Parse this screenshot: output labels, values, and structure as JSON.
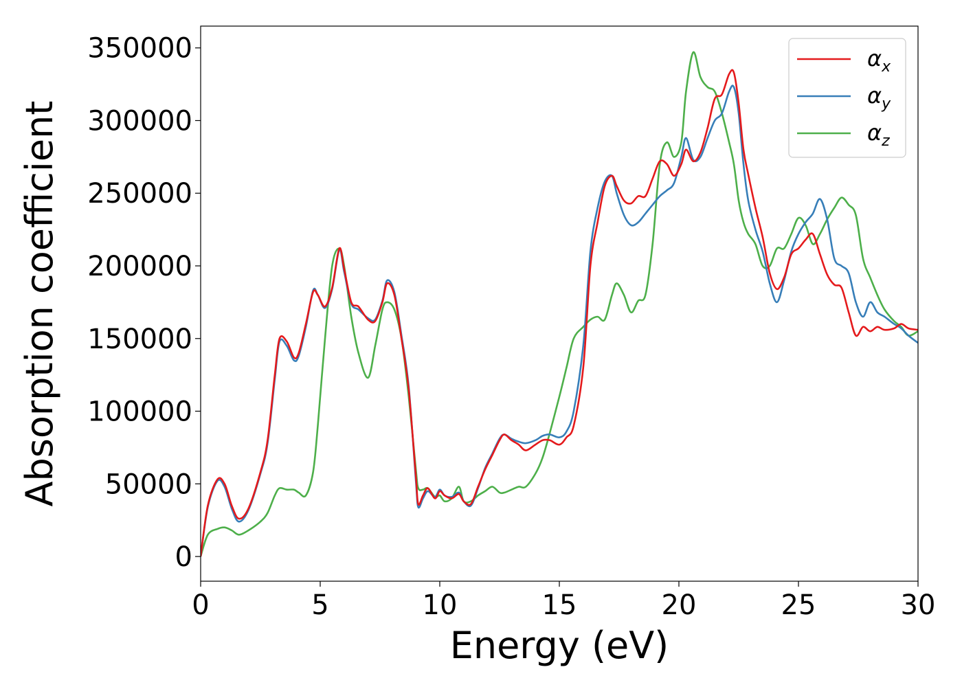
{
  "chart_data": {
    "type": "line",
    "title": "",
    "xlabel": "Energy (eV)",
    "ylabel": "Absorption coefficient",
    "xlim": [
      0,
      30
    ],
    "ylim": [
      -17000,
      365000
    ],
    "x_ticks": [
      "0",
      "5",
      "10",
      "15",
      "20",
      "25",
      "30"
    ],
    "y_ticks": [
      "0",
      "50000",
      "100000",
      "150000",
      "200000",
      "250000",
      "300000",
      "350000"
    ],
    "grid": false,
    "legend_position": "top-right",
    "series": [
      {
        "name": "αx",
        "symbol": "α",
        "subscript": "x",
        "color": "#e41a1c",
        "x": [
          0,
          0.3,
          0.7,
          1.0,
          1.3,
          1.6,
          2.0,
          2.5,
          2.8,
          3.1,
          3.3,
          3.6,
          3.9,
          4.1,
          4.4,
          4.7,
          4.9,
          5.2,
          5.5,
          5.8,
          6.0,
          6.3,
          6.6,
          7.0,
          7.3,
          7.6,
          7.8,
          8.1,
          8.4,
          8.7,
          9.0,
          9.1,
          9.3,
          9.5,
          9.8,
          10.0,
          10.2,
          10.5,
          10.8,
          11.0,
          11.3,
          11.6,
          11.9,
          12.2,
          12.5,
          12.7,
          13.0,
          13.3,
          13.6,
          14.0,
          14.3,
          14.6,
          15.0,
          15.3,
          15.6,
          16.0,
          16.3,
          16.6,
          16.9,
          17.2,
          17.4,
          17.7,
          18.0,
          18.3,
          18.6,
          18.9,
          19.2,
          19.5,
          19.8,
          20.1,
          20.3,
          20.6,
          20.9,
          21.2,
          21.5,
          21.8,
          22.1,
          22.3,
          22.5,
          22.7,
          22.9,
          23.2,
          23.5,
          23.8,
          24.1,
          24.4,
          24.7,
          25.0,
          25.3,
          25.6,
          25.9,
          26.2,
          26.5,
          26.8,
          27.1,
          27.4,
          27.7,
          28.0,
          28.3,
          28.6,
          29.0,
          29.3,
          29.6,
          30.0
        ],
        "y": [
          0,
          35000,
          53000,
          50000,
          35000,
          26000,
          33000,
          58000,
          80000,
          125000,
          150000,
          148000,
          137000,
          140000,
          160000,
          182000,
          180000,
          172000,
          185000,
          212000,
          198000,
          175000,
          172000,
          163000,
          162000,
          175000,
          188000,
          180000,
          150000,
          115000,
          55000,
          36000,
          42000,
          47000,
          40000,
          45000,
          42000,
          40000,
          43000,
          38000,
          36000,
          48000,
          60000,
          70000,
          80000,
          84000,
          80000,
          77000,
          73000,
          77000,
          80000,
          80000,
          77000,
          82000,
          90000,
          130000,
          200000,
          230000,
          255000,
          262000,
          255000,
          245000,
          243000,
          248000,
          248000,
          260000,
          272000,
          270000,
          262000,
          270000,
          280000,
          272000,
          278000,
          295000,
          315000,
          318000,
          332000,
          333000,
          312000,
          280000,
          263000,
          240000,
          220000,
          195000,
          184000,
          192000,
          208000,
          212000,
          218000,
          222000,
          208000,
          194000,
          187000,
          185000,
          168000,
          152000,
          158000,
          155000,
          158000,
          156000,
          157000,
          160000,
          157000,
          156000
        ]
      },
      {
        "name": "αy",
        "symbol": "α",
        "subscript": "y",
        "color": "#377eb8",
        "x": [
          0,
          0.3,
          0.7,
          1.0,
          1.3,
          1.6,
          2.0,
          2.5,
          2.8,
          3.1,
          3.3,
          3.6,
          3.9,
          4.1,
          4.4,
          4.7,
          4.9,
          5.2,
          5.5,
          5.8,
          6.0,
          6.3,
          6.6,
          7.0,
          7.3,
          7.6,
          7.8,
          8.1,
          8.4,
          8.7,
          9.0,
          9.1,
          9.3,
          9.5,
          9.8,
          10.0,
          10.2,
          10.5,
          10.8,
          11.0,
          11.3,
          11.6,
          11.9,
          12.2,
          12.5,
          12.7,
          13.0,
          13.3,
          13.6,
          14.0,
          14.3,
          14.6,
          15.0,
          15.3,
          15.6,
          16.0,
          16.3,
          16.6,
          16.9,
          17.2,
          17.4,
          17.7,
          18.0,
          18.3,
          18.6,
          18.9,
          19.2,
          19.5,
          19.8,
          20.1,
          20.3,
          20.6,
          20.9,
          21.2,
          21.5,
          21.8,
          22.1,
          22.3,
          22.5,
          22.7,
          22.9,
          23.2,
          23.5,
          23.8,
          24.1,
          24.4,
          24.7,
          25.0,
          25.3,
          25.6,
          25.9,
          26.2,
          26.5,
          26.8,
          27.1,
          27.4,
          27.7,
          28.0,
          28.3,
          28.6,
          29.0,
          29.3,
          29.6,
          30.0
        ],
        "y": [
          0,
          34000,
          52000,
          48000,
          33000,
          24000,
          32000,
          57000,
          78000,
          122000,
          148000,
          145000,
          135000,
          138000,
          158000,
          183000,
          180000,
          171000,
          184000,
          211000,
          196000,
          174000,
          170000,
          164000,
          163000,
          176000,
          190000,
          182000,
          152000,
          117000,
          52000,
          34000,
          40000,
          45000,
          41000,
          46000,
          42000,
          41000,
          44000,
          38000,
          35000,
          47000,
          61000,
          71000,
          81000,
          84000,
          81000,
          79000,
          78000,
          80000,
          83000,
          84000,
          82000,
          86000,
          100000,
          145000,
          210000,
          240000,
          258000,
          262000,
          250000,
          235000,
          228000,
          230000,
          236000,
          242000,
          248000,
          252000,
          257000,
          275000,
          288000,
          273000,
          275000,
          288000,
          300000,
          305000,
          320000,
          323000,
          305000,
          270000,
          245000,
          225000,
          210000,
          188000,
          175000,
          190000,
          210000,
          222000,
          230000,
          236000,
          246000,
          232000,
          205000,
          200000,
          195000,
          175000,
          165000,
          175000,
          168000,
          165000,
          160000,
          157000,
          152000,
          147000
        ]
      },
      {
        "name": "αz",
        "symbol": "α",
        "subscript": "z",
        "color": "#4daf4a",
        "x": [
          0,
          0.3,
          0.7,
          1.0,
          1.3,
          1.6,
          2.0,
          2.5,
          2.8,
          3.1,
          3.3,
          3.6,
          3.9,
          4.1,
          4.4,
          4.7,
          4.9,
          5.2,
          5.5,
          5.8,
          6.0,
          6.3,
          6.6,
          7.0,
          7.3,
          7.6,
          7.8,
          8.1,
          8.4,
          8.7,
          9.0,
          9.1,
          9.3,
          9.5,
          9.8,
          10.0,
          10.2,
          10.5,
          10.8,
          11.0,
          11.3,
          11.6,
          11.9,
          12.2,
          12.5,
          12.7,
          13.0,
          13.3,
          13.6,
          14.0,
          14.3,
          14.6,
          15.0,
          15.3,
          15.6,
          16.0,
          16.3,
          16.6,
          16.9,
          17.2,
          17.4,
          17.7,
          18.0,
          18.3,
          18.6,
          18.9,
          19.2,
          19.5,
          19.8,
          20.1,
          20.3,
          20.6,
          20.9,
          21.2,
          21.5,
          21.8,
          22.1,
          22.3,
          22.5,
          22.7,
          22.9,
          23.2,
          23.5,
          23.8,
          24.1,
          24.4,
          24.7,
          25.0,
          25.3,
          25.6,
          25.9,
          26.2,
          26.5,
          26.8,
          27.1,
          27.4,
          27.7,
          28.0,
          28.3,
          28.6,
          29.0,
          29.3,
          29.6,
          30.0
        ],
        "y": [
          0,
          15000,
          19000,
          20000,
          18000,
          15000,
          18000,
          24000,
          30000,
          42000,
          47000,
          46000,
          46000,
          44000,
          42000,
          58000,
          90000,
          150000,
          200000,
          212000,
          200000,
          165000,
          140000,
          123000,
          145000,
          170000,
          175000,
          170000,
          150000,
          110000,
          60000,
          47000,
          46000,
          47000,
          41000,
          42000,
          38000,
          40000,
          48000,
          38000,
          38000,
          42000,
          45000,
          48000,
          44000,
          44000,
          46000,
          48000,
          48000,
          57000,
          68000,
          85000,
          110000,
          130000,
          150000,
          158000,
          163000,
          165000,
          163000,
          180000,
          188000,
          180000,
          168000,
          176000,
          180000,
          215000,
          270000,
          285000,
          275000,
          285000,
          320000,
          347000,
          330000,
          323000,
          320000,
          305000,
          285000,
          270000,
          245000,
          230000,
          222000,
          215000,
          200000,
          200000,
          212000,
          212000,
          222000,
          233000,
          228000,
          215000,
          222000,
          232000,
          240000,
          247000,
          242000,
          235000,
          205000,
          192000,
          180000,
          170000,
          162000,
          158000,
          152000,
          155000
        ]
      }
    ]
  }
}
